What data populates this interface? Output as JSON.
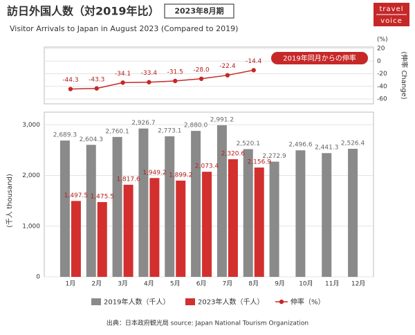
{
  "header": {
    "title": "訪日外国人数（対2019年比）",
    "badge": "2023年8月期",
    "subtitle": "Visitor Arrivals to Japan in August 2023 (Compared to 2019)",
    "logo": [
      "travel",
      "voice"
    ],
    "source": "出典：日本政府観光局  source: Japan National Tourism Organization"
  },
  "chart_data": [
    {
      "type": "line",
      "annotation": "2019年同月からの伸率",
      "y2_unit": "(%)",
      "y2_label": "(伸率 Change)",
      "categories": [
        "1月",
        "2月",
        "3月",
        "4月",
        "5月",
        "6月",
        "7月",
        "8月",
        "9月",
        "10月",
        "11月",
        "12月"
      ],
      "series": [
        {
          "name": "伸率（%）",
          "color": "#c62828",
          "axis": "y2",
          "values": [
            -44.3,
            -43.3,
            -34.1,
            -33.4,
            -31.5,
            -28.0,
            -22.4,
            -14.4,
            null,
            null,
            null,
            null
          ],
          "value_labels": [
            "-44.3",
            "-43.3",
            "-34.1",
            "-33.4",
            "-31.5",
            "-28.0",
            "-22.4",
            "-14.4",
            null,
            null,
            null,
            null
          ]
        }
      ],
      "y2lim": [
        -60,
        20
      ],
      "y2ticks": [
        -60,
        -40,
        -20,
        0,
        20
      ],
      "grid": true
    },
    {
      "type": "bar",
      "ylabel": "(千人 thousand)",
      "categories": [
        "1月",
        "2月",
        "3月",
        "4月",
        "5月",
        "6月",
        "7月",
        "8月",
        "9月",
        "10月",
        "11月",
        "12月"
      ],
      "series": [
        {
          "name": "2019年人数（千人）",
          "color": "#8a8a8a",
          "values": [
            2689.3,
            2604.3,
            2760.1,
            2926.7,
            2773.1,
            2880.0,
            2991.2,
            2520.1,
            2272.9,
            2496.6,
            2441.3,
            2526.4
          ],
          "value_labels": [
            "2,689.3",
            "2,604.3",
            "2,760.1",
            "2,926.7",
            "2,773.1",
            "2,880.0",
            "2,991.2",
            "2,520.1",
            "2,272.9",
            "2,496.6",
            "2,441.3",
            "2,526.4"
          ]
        },
        {
          "name": "2023年人数（千人）",
          "color": "#d32f2f",
          "values": [
            1497.5,
            1475.5,
            1817.6,
            1949.2,
            1899.2,
            2073.4,
            2320.6,
            2156.9,
            null,
            null,
            null,
            null
          ],
          "value_labels": [
            "1,497.5",
            "1,475.5",
            "1,817.6",
            "1,949.2",
            "1,899.2",
            "2,073.4",
            "2,320.6",
            "2,156.9",
            null,
            null,
            null,
            null
          ]
        }
      ],
      "ylim": [
        0,
        3250
      ],
      "yticks": [
        0,
        {
          "value": 1000,
          "label": "1,000"
        },
        {
          "value": 2000,
          "label": "2,000"
        },
        {
          "value": 3000,
          "label": "3,000"
        }
      ],
      "grid": true
    }
  ]
}
